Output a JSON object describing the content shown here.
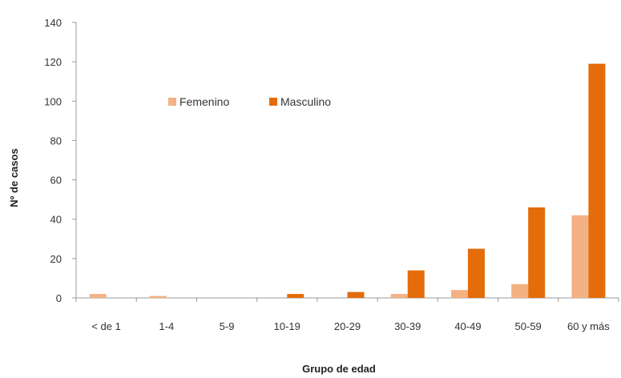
{
  "chart_data": {
    "type": "bar",
    "categories": [
      "< de 1",
      "1-4",
      "5-9",
      "10-19",
      "20-29",
      "30-39",
      "40-49",
      "50-59",
      "60 y más"
    ],
    "series": [
      {
        "name": "Femenino",
        "color": "#f4b183",
        "values": [
          2,
          1,
          0,
          0,
          0,
          2,
          4,
          7,
          42
        ]
      },
      {
        "name": "Masculino",
        "color": "#e46c0a",
        "values": [
          0,
          0,
          0,
          2,
          3,
          14,
          25,
          46,
          119
        ]
      }
    ],
    "title": "",
    "xlabel": "Grupo de edad",
    "ylabel": "Nº de casos",
    "ylim": [
      0,
      140
    ],
    "yticks": [
      0,
      20,
      40,
      60,
      80,
      100,
      120,
      140
    ],
    "grid": false,
    "legend_position": "inside-top-left"
  }
}
